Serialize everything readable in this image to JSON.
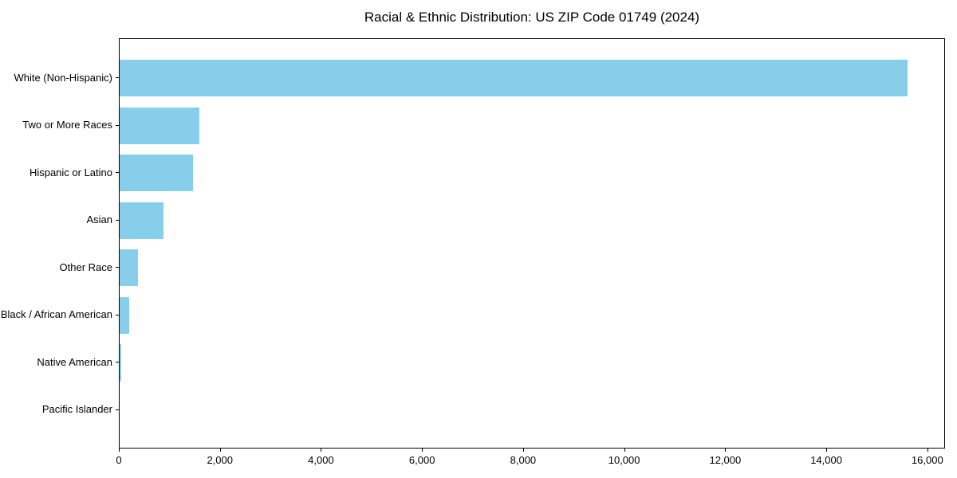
{
  "title": "Racial & Ethnic Distribution: US ZIP Code 01749 (2024)",
  "colors": {
    "bar": "#87CEEB",
    "axis": "#000000",
    "background": "#ffffff",
    "text": "#000000"
  },
  "chart_data": {
    "type": "bar",
    "orientation": "horizontal",
    "title": "Racial & Ethnic Distribution: US ZIP Code 01749 (2024)",
    "xlabel": "",
    "ylabel": "",
    "categories": [
      "White (Non-Hispanic)",
      "Two or More Races",
      "Hispanic or Latino",
      "Asian",
      "Other Race",
      "Black / African American",
      "Native American",
      "Pacific Islander"
    ],
    "values": [
      15590,
      1580,
      1450,
      870,
      360,
      190,
      25,
      0
    ],
    "xlim": [
      0,
      16350
    ],
    "x_ticks": [
      0,
      2000,
      4000,
      6000,
      8000,
      10000,
      12000,
      14000,
      16000
    ],
    "x_tick_labels": [
      "0",
      "2,000",
      "4,000",
      "6,000",
      "8,000",
      "10,000",
      "12,000",
      "14,000",
      "16,000"
    ],
    "grid": false,
    "legend": "none",
    "bar_color": "#87CEEB"
  }
}
